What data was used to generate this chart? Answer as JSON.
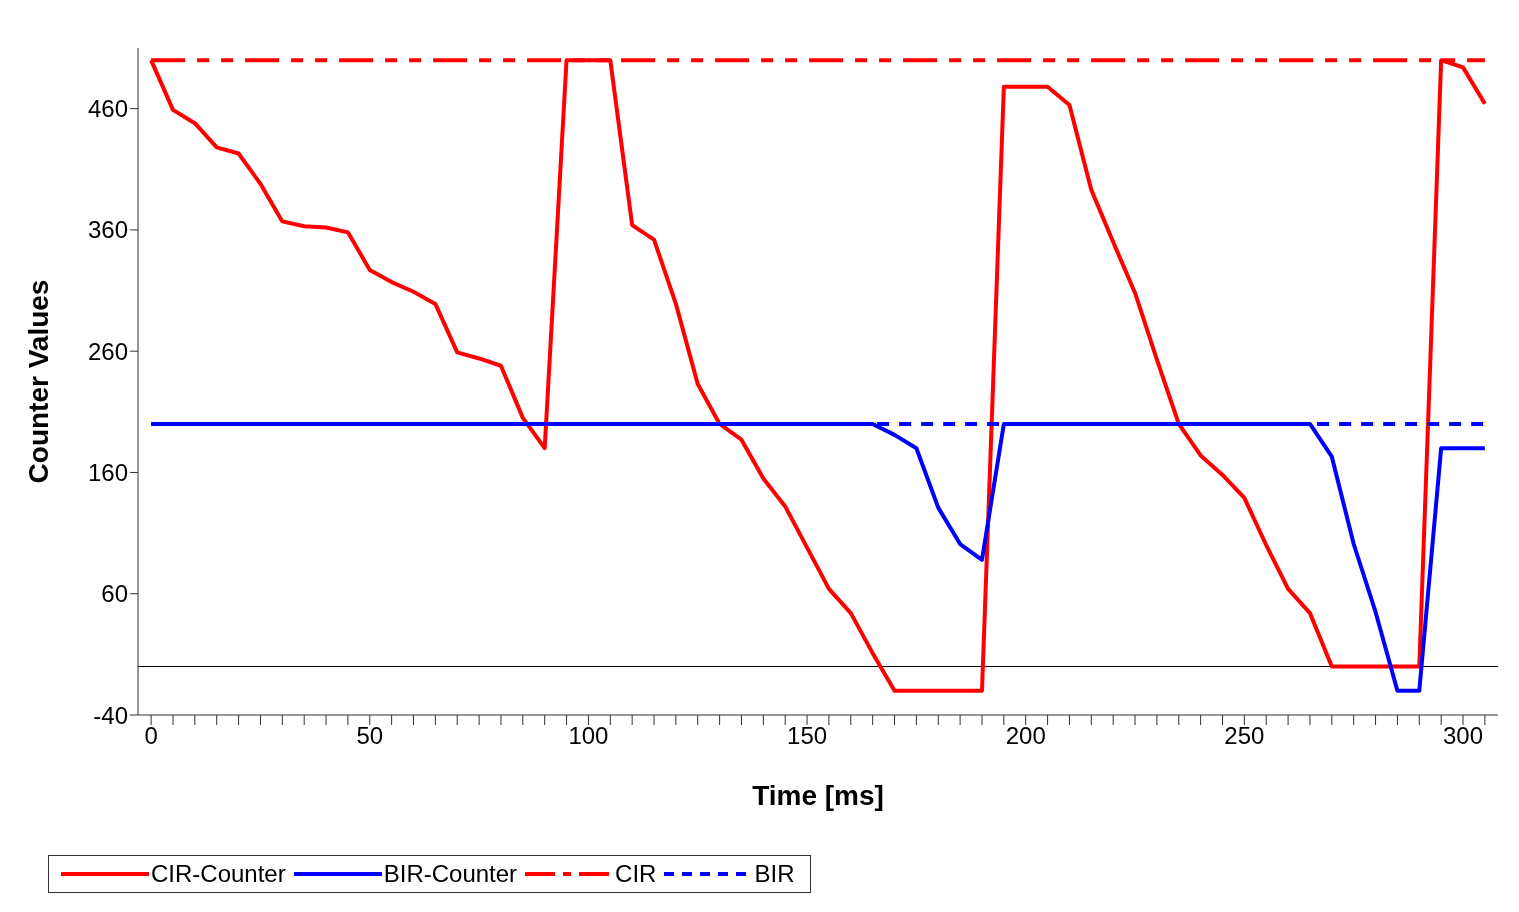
{
  "chart_data": {
    "type": "line",
    "xlabel": "Time [ms]",
    "ylabel": "Counter Values",
    "x": [
      0,
      5,
      10,
      15,
      20,
      25,
      30,
      35,
      40,
      45,
      50,
      55,
      60,
      65,
      70,
      75,
      80,
      85,
      90,
      95,
      100,
      105,
      110,
      115,
      120,
      125,
      130,
      135,
      140,
      145,
      150,
      155,
      160,
      165,
      170,
      175,
      180,
      185,
      190,
      195,
      200,
      205,
      210,
      215,
      220,
      225,
      230,
      235,
      240,
      245,
      250,
      255,
      260,
      265,
      270,
      275,
      280,
      285,
      290,
      295,
      300,
      305
    ],
    "series": [
      {
        "name": "CIR-Counter",
        "color": "#ff0000",
        "line_style": "solid",
        "values": [
          500,
          459,
          448,
          428,
          423,
          398,
          367,
          363,
          362,
          358,
          327,
          317,
          309,
          299,
          259,
          254,
          248,
          205,
          180,
          500,
          500,
          500,
          364,
          352,
          299,
          233,
          200,
          187,
          155,
          132,
          98,
          64,
          44,
          11,
          -20,
          -20,
          -20,
          -20,
          -20,
          478,
          478,
          478,
          463,
          393,
          350,
          308,
          253,
          200,
          174,
          158,
          139,
          100,
          64,
          44,
          0,
          0,
          0,
          0,
          0,
          500,
          494,
          464
        ]
      },
      {
        "name": "BIR-Counter",
        "color": "#0000ff",
        "line_style": "solid",
        "values": [
          200,
          200,
          200,
          200,
          200,
          200,
          200,
          200,
          200,
          200,
          200,
          200,
          200,
          200,
          200,
          200,
          200,
          200,
          200,
          200,
          200,
          200,
          200,
          200,
          200,
          200,
          200,
          200,
          200,
          200,
          200,
          200,
          200,
          200,
          191,
          180,
          131,
          101,
          88,
          200,
          200,
          200,
          200,
          200,
          200,
          200,
          200,
          200,
          200,
          200,
          200,
          200,
          200,
          200,
          173,
          101,
          45,
          -20,
          -20,
          180,
          180,
          180
        ]
      },
      {
        "name": "CIR",
        "color": "#ff0000",
        "line_style": "dashed",
        "values": [
          500,
          500,
          500,
          500,
          500,
          500,
          500,
          500,
          500,
          500,
          500,
          500,
          500,
          500,
          500,
          500,
          500,
          500,
          500,
          500,
          500,
          500,
          500,
          500,
          500,
          500,
          500,
          500,
          500,
          500,
          500,
          500,
          500,
          500,
          500,
          500,
          500,
          500,
          500,
          500,
          500,
          500,
          500,
          500,
          500,
          500,
          500,
          500,
          500,
          500,
          500,
          500,
          500,
          500,
          500,
          500,
          500,
          500,
          500,
          500,
          500,
          500
        ]
      },
      {
        "name": "BIR",
        "color": "#0000ff",
        "line_style": "dotted",
        "values": [
          200,
          200,
          200,
          200,
          200,
          200,
          200,
          200,
          200,
          200,
          200,
          200,
          200,
          200,
          200,
          200,
          200,
          200,
          200,
          200,
          200,
          200,
          200,
          200,
          200,
          200,
          200,
          200,
          200,
          200,
          200,
          200,
          200,
          200,
          200,
          200,
          200,
          200,
          200,
          200,
          200,
          200,
          200,
          200,
          200,
          200,
          200,
          200,
          200,
          200,
          200,
          200,
          200,
          200,
          200,
          200,
          200,
          200,
          200,
          200,
          200,
          200
        ]
      }
    ],
    "xlim": [
      -3,
      308
    ],
    "xticks": [
      0,
      {
        "value": 5,
        "label": null
      },
      {
        "value": 10,
        "label": null
      },
      {
        "value": 15,
        "label": null
      },
      {
        "value": 20,
        "label": null
      },
      {
        "value": 25,
        "label": null
      },
      {
        "value": 30,
        "label": null
      },
      {
        "value": 35,
        "label": null
      },
      {
        "value": 40,
        "label": null
      },
      {
        "value": 45,
        "label": null
      },
      50,
      {
        "value": 55,
        "label": null
      },
      {
        "value": 60,
        "label": null
      },
      {
        "value": 65,
        "label": null
      },
      {
        "value": 70,
        "label": null
      },
      {
        "value": 75,
        "label": null
      },
      {
        "value": 80,
        "label": null
      },
      {
        "value": 85,
        "label": null
      },
      {
        "value": 90,
        "label": null
      },
      {
        "value": 95,
        "label": null
      },
      100,
      {
        "value": 105,
        "label": null
      },
      {
        "value": 110,
        "label": null
      },
      {
        "value": 115,
        "label": null
      },
      {
        "value": 120,
        "label": null
      },
      {
        "value": 125,
        "label": null
      },
      {
        "value": 130,
        "label": null
      },
      {
        "value": 135,
        "label": null
      },
      {
        "value": 140,
        "label": null
      },
      {
        "value": 145,
        "label": null
      },
      150,
      {
        "value": 155,
        "label": null
      },
      {
        "value": 160,
        "label": null
      },
      {
        "value": 165,
        "label": null
      },
      {
        "value": 170,
        "label": null
      },
      {
        "value": 175,
        "label": null
      },
      {
        "value": 180,
        "label": null
      },
      {
        "value": 185,
        "label": null
      },
      {
        "value": 190,
        "label": null
      },
      {
        "value": 195,
        "label": null
      },
      200,
      {
        "value": 205,
        "label": null
      },
      {
        "value": 210,
        "label": null
      },
      {
        "value": 215,
        "label": null
      },
      {
        "value": 220,
        "label": null
      },
      {
        "value": 225,
        "label": null
      },
      {
        "value": 230,
        "label": null
      },
      {
        "value": 235,
        "label": null
      },
      {
        "value": 240,
        "label": null
      },
      {
        "value": 245,
        "label": null
      },
      250,
      {
        "value": 255,
        "label": null
      },
      {
        "value": 260,
        "label": null
      },
      {
        "value": 265,
        "label": null
      },
      {
        "value": 270,
        "label": null
      },
      {
        "value": 275,
        "label": null
      },
      {
        "value": 280,
        "label": null
      },
      {
        "value": 285,
        "label": null
      },
      {
        "value": 290,
        "label": null
      },
      {
        "value": 295,
        "label": null
      },
      300,
      {
        "value": 305,
        "label": null
      }
    ],
    "ylim": [
      -40,
      510
    ],
    "yticks": [
      -40,
      60,
      160,
      260,
      360,
      460
    ],
    "ref_lines": [
      {
        "axis": "y",
        "value": 0,
        "color": "#000000"
      }
    ],
    "grid": false,
    "legend": "bottom",
    "marker": "none"
  }
}
